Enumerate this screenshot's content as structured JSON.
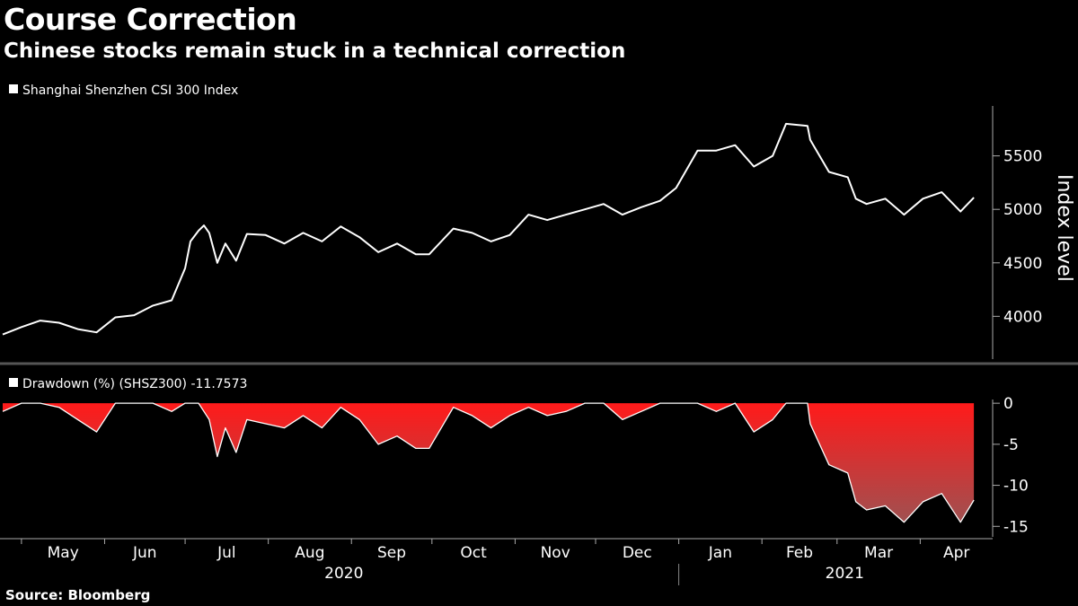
{
  "header": {
    "title": "Course Correction",
    "subtitle": "Chinese stocks remain stuck in a technical correction"
  },
  "footer": {
    "source": "Source: Bloomberg"
  },
  "colors": {
    "background": "#000000",
    "line": "#ffffff",
    "drawdown_top": "#ff1a1a",
    "drawdown_bottom": "#a05050",
    "axis": "#aaaaaa"
  },
  "chart_data": [
    {
      "type": "line",
      "legend": "Shanghai Shenzhen CSI 300 Index",
      "ylabel": "Index level",
      "yticks": [
        4000,
        4500,
        5000,
        5500
      ],
      "ylim": [
        3600,
        5950
      ],
      "x": [
        "2020-04-24",
        "2020-05-01",
        "2020-05-08",
        "2020-05-15",
        "2020-05-22",
        "2020-05-29",
        "2020-06-05",
        "2020-06-12",
        "2020-06-19",
        "2020-06-26",
        "2020-07-01",
        "2020-07-03",
        "2020-07-06",
        "2020-07-08",
        "2020-07-10",
        "2020-07-13",
        "2020-07-16",
        "2020-07-20",
        "2020-07-24",
        "2020-07-31",
        "2020-08-07",
        "2020-08-14",
        "2020-08-21",
        "2020-08-28",
        "2020-09-04",
        "2020-09-11",
        "2020-09-18",
        "2020-09-25",
        "2020-09-30",
        "2020-10-09",
        "2020-10-16",
        "2020-10-23",
        "2020-10-30",
        "2020-11-06",
        "2020-11-13",
        "2020-11-20",
        "2020-11-27",
        "2020-12-04",
        "2020-12-11",
        "2020-12-18",
        "2020-12-25",
        "2020-12-31",
        "2021-01-08",
        "2021-01-15",
        "2021-01-22",
        "2021-01-29",
        "2021-02-05",
        "2021-02-10",
        "2021-02-18",
        "2021-02-19",
        "2021-02-26",
        "2021-03-05",
        "2021-03-08",
        "2021-03-12",
        "2021-03-19",
        "2021-03-26",
        "2021-04-02",
        "2021-04-09",
        "2021-04-16",
        "2021-04-21"
      ],
      "values": [
        3830,
        3900,
        3960,
        3940,
        3880,
        3850,
        3990,
        4010,
        4100,
        4150,
        4450,
        4700,
        4800,
        4850,
        4780,
        4500,
        4680,
        4520,
        4770,
        4760,
        4680,
        4780,
        4700,
        4840,
        4740,
        4600,
        4680,
        4580,
        4580,
        4820,
        4780,
        4700,
        4760,
        4950,
        4900,
        4950,
        5000,
        5050,
        4950,
        5020,
        5080,
        5200,
        5550,
        5550,
        5600,
        5400,
        5500,
        5800,
        5780,
        5650,
        5350,
        5300,
        5100,
        5050,
        5100,
        4950,
        5100,
        5160,
        4980,
        5110
      ]
    },
    {
      "type": "area",
      "legend": "Drawdown (%) (SHSZ300) -11.7573",
      "yticks": [
        0,
        -5,
        -10,
        -15
      ],
      "ylim": [
        -16.5,
        1
      ],
      "x": [
        "2020-04-24",
        "2020-05-01",
        "2020-05-08",
        "2020-05-15",
        "2020-05-22",
        "2020-05-29",
        "2020-06-05",
        "2020-06-12",
        "2020-06-19",
        "2020-06-26",
        "2020-07-01",
        "2020-07-03",
        "2020-07-06",
        "2020-07-08",
        "2020-07-10",
        "2020-07-13",
        "2020-07-16",
        "2020-07-20",
        "2020-07-24",
        "2020-07-31",
        "2020-08-07",
        "2020-08-14",
        "2020-08-21",
        "2020-08-28",
        "2020-09-04",
        "2020-09-11",
        "2020-09-18",
        "2020-09-25",
        "2020-09-30",
        "2020-10-09",
        "2020-10-16",
        "2020-10-23",
        "2020-10-30",
        "2020-11-06",
        "2020-11-13",
        "2020-11-20",
        "2020-11-27",
        "2020-12-04",
        "2020-12-11",
        "2020-12-18",
        "2020-12-25",
        "2020-12-31",
        "2021-01-08",
        "2021-01-15",
        "2021-01-22",
        "2021-01-29",
        "2021-02-05",
        "2021-02-10",
        "2021-02-18",
        "2021-02-19",
        "2021-02-26",
        "2021-03-05",
        "2021-03-08",
        "2021-03-12",
        "2021-03-19",
        "2021-03-26",
        "2021-04-02",
        "2021-04-09",
        "2021-04-16",
        "2021-04-21"
      ],
      "values": [
        -1,
        0,
        0,
        -0.5,
        -2,
        -3.5,
        0,
        0,
        0,
        -1,
        0,
        0,
        0,
        -1,
        -2,
        -6.5,
        -3,
        -6,
        -2,
        -2.5,
        -3,
        -1.5,
        -3,
        -0.5,
        -2,
        -5,
        -4,
        -5.5,
        -5.5,
        -0.5,
        -1.5,
        -3,
        -1.5,
        -0.5,
        -1.5,
        -1,
        0,
        0,
        -2,
        -1,
        0,
        0,
        0,
        -1,
        0,
        -3.5,
        -2,
        0,
        0,
        -2.5,
        -7.5,
        -8.5,
        -12,
        -13,
        -12.5,
        -14.5,
        -12,
        -11,
        -14.5,
        -11.8
      ]
    }
  ],
  "x_axis": {
    "months": [
      "May",
      "Jun",
      "Jul",
      "Aug",
      "Sep",
      "Oct",
      "Nov",
      "Dec",
      "Jan",
      "Feb",
      "Mar",
      "Apr"
    ],
    "years": [
      "2020",
      "2021"
    ]
  }
}
